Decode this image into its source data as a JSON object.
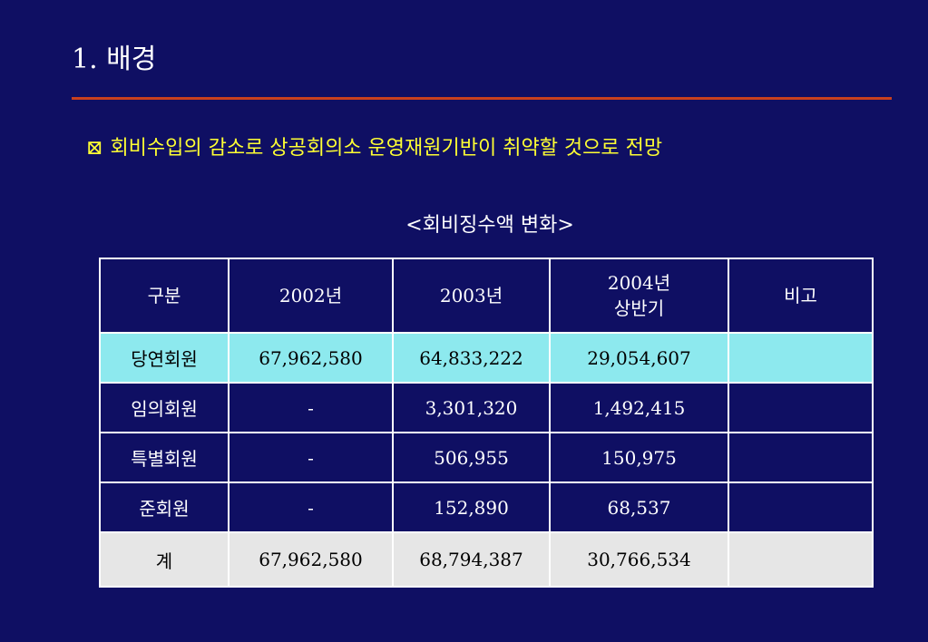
{
  "slide": {
    "title": "1. 배경",
    "headline_bullet": "⊠",
    "headline": "회비수입의 감소로 상공회의소 운영재원기반이 취약할 것으로 전망",
    "table_caption": "<회비징수액 변화>"
  },
  "table": {
    "headers": {
      "category": "구분",
      "y2002": "2002년",
      "y2003": "2003년",
      "y2004_line1": "2004년",
      "y2004_line2": "상반기",
      "note": "비고"
    },
    "rows": [
      {
        "category": "당연회원",
        "y2002": "67,962,580",
        "y2003": "64,833,222",
        "y2004": "29,054,607",
        "note": ""
      },
      {
        "category": "임의회원",
        "y2002": "-",
        "y2003": "3,301,320",
        "y2004": "1,492,415",
        "note": ""
      },
      {
        "category": "특별회원",
        "y2002": "-",
        "y2003": "506,955",
        "y2004": "150,975",
        "note": ""
      },
      {
        "category": "준회원",
        "y2002": "-",
        "y2003": "152,890",
        "y2004": "68,537",
        "note": ""
      }
    ],
    "total": {
      "category": "계",
      "y2002": "67,962,580",
      "y2003": "68,794,387",
      "y2004": "30,766,534",
      "note": ""
    }
  },
  "colors": {
    "background": "#0f0f63",
    "title_rule": "#c8401e",
    "headline_text": "#ffff33",
    "highlight_row": "#8de9ee",
    "total_row": "#e6e6e6"
  }
}
